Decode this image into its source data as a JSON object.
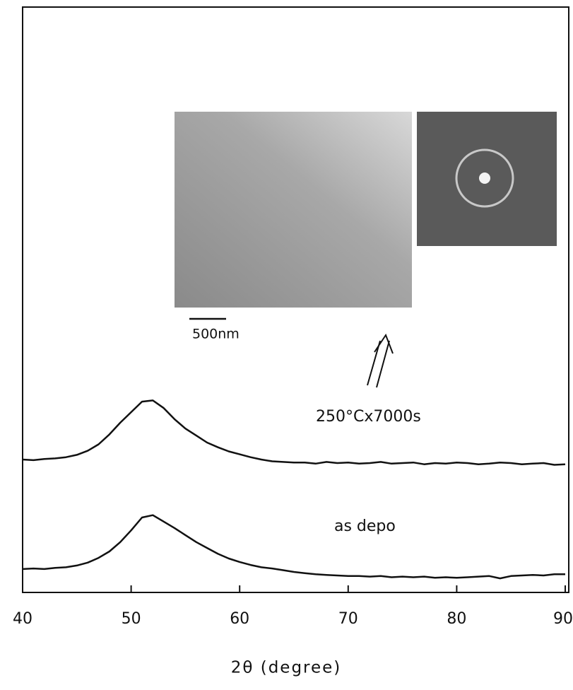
{
  "chart_data": {
    "type": "line",
    "xlabel": "2θ (degree)",
    "x": [
      40,
      41,
      42,
      43,
      44,
      45,
      46,
      47,
      48,
      49,
      50,
      51,
      52,
      53,
      54,
      55,
      56,
      57,
      58,
      59,
      60,
      61,
      62,
      63,
      64,
      65,
      66,
      67,
      68,
      69,
      70,
      71,
      72,
      73,
      74,
      75,
      76,
      77,
      78,
      79,
      80,
      81,
      82,
      83,
      84,
      85,
      86,
      87,
      88,
      89,
      90
    ],
    "series": [
      {
        "name": "250°Cx7000s",
        "color": "#111111",
        "values": [
          22.7,
          22.6,
          22.8,
          22.9,
          23.1,
          23.5,
          24.2,
          25.3,
          27.0,
          29.0,
          30.8,
          32.6,
          32.8,
          31.5,
          29.6,
          28.0,
          26.8,
          25.6,
          24.8,
          24.1,
          23.6,
          23.1,
          22.7,
          22.4,
          22.3,
          22.2,
          22.2,
          22.0,
          22.3,
          22.1,
          22.2,
          22.0,
          22.1,
          22.3,
          22.0,
          22.1,
          22.2,
          21.9,
          22.1,
          22.0,
          22.2,
          22.1,
          21.9,
          22.0,
          22.2,
          22.1,
          21.9,
          22.0,
          22.1,
          21.8,
          21.9
        ]
      },
      {
        "name": "as depo",
        "color": "#111111",
        "values": [
          4.0,
          4.1,
          4.0,
          4.2,
          4.3,
          4.6,
          5.1,
          5.9,
          7.0,
          8.6,
          10.6,
          12.8,
          13.2,
          12.1,
          11.0,
          9.8,
          8.6,
          7.6,
          6.6,
          5.8,
          5.2,
          4.7,
          4.3,
          4.1,
          3.8,
          3.5,
          3.3,
          3.1,
          3.0,
          2.9,
          2.8,
          2.8,
          2.7,
          2.8,
          2.6,
          2.7,
          2.6,
          2.7,
          2.5,
          2.6,
          2.5,
          2.6,
          2.7,
          2.8,
          2.4,
          2.8,
          2.9,
          3.0,
          2.9,
          3.1,
          3.1
        ]
      }
    ],
    "xlim": [
      40,
      90
    ],
    "xticks": [
      40,
      50,
      60,
      70,
      80,
      90
    ],
    "ylim": [
      0,
      100
    ],
    "scale_bar_label": "500nm"
  }
}
